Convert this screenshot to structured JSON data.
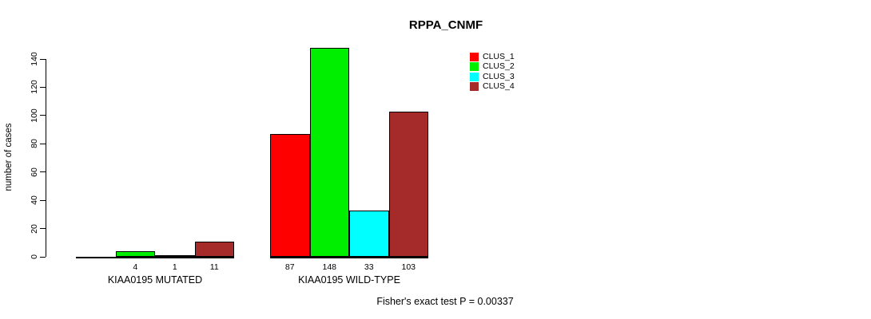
{
  "chart_data": {
    "type": "bar",
    "title": "RPPA_CNMF",
    "ylabel": "number of cases",
    "xlabel": "",
    "ylim": [
      0,
      140
    ],
    "yticks": [
      0,
      20,
      40,
      60,
      80,
      100,
      120,
      140
    ],
    "grid": false,
    "legend_position": "top-right",
    "categories": [
      "KIAA0195 MUTATED",
      "KIAA0195 WILD-TYPE"
    ],
    "series": [
      {
        "name": "CLUS_1",
        "color": "#FF0000",
        "values": [
          0,
          87
        ]
      },
      {
        "name": "CLUS_2",
        "color": "#00EE00",
        "values": [
          4,
          148
        ]
      },
      {
        "name": "CLUS_3",
        "color": "#00FFFF",
        "values": [
          1,
          33
        ]
      },
      {
        "name": "CLUS_4",
        "color": "#A52A2A",
        "values": [
          11,
          103
        ]
      }
    ],
    "value_labels": [
      [
        "",
        "4",
        "1",
        "11"
      ],
      [
        "87",
        "148",
        "33",
        "103"
      ]
    ],
    "annotation": "Fisher's exact test P = 0.00337"
  }
}
